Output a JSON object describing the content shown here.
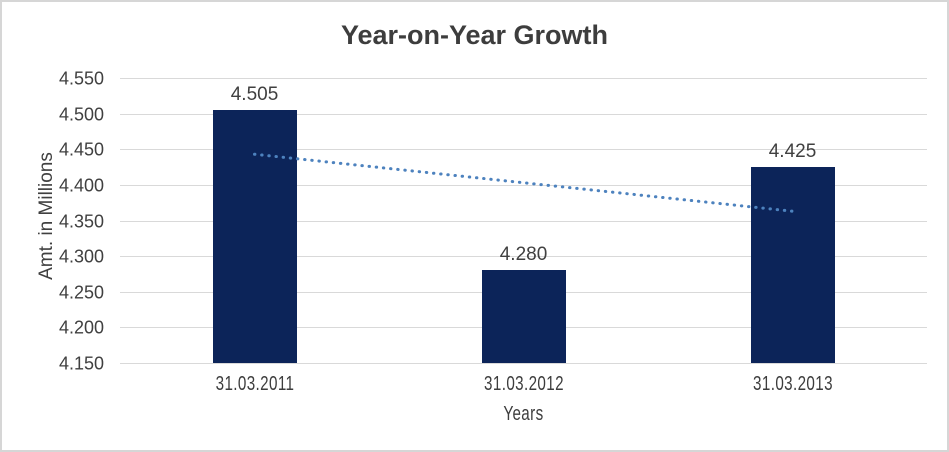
{
  "window": {
    "background_color": "#ffffff",
    "border_color": "#d6d6d6"
  },
  "chart_data": {
    "type": "bar",
    "title": "Year-on-Year Growth",
    "xlabel": "Years",
    "ylabel": "Amt. in Millions",
    "categories": [
      "31.03.2011",
      "31.03.2012",
      "31.03.2013"
    ],
    "values": [
      4.505,
      4.28,
      4.425
    ],
    "value_labels": [
      "4.505",
      "4.280",
      "4.425"
    ],
    "ylim": [
      4.15,
      4.55
    ],
    "ytick_labels": [
      "4.150",
      "4.200",
      "4.250",
      "4.300",
      "4.350",
      "4.400",
      "4.450",
      "4.500",
      "4.550"
    ],
    "grid": true,
    "legend_position": "none",
    "bar_color": "#0c2459",
    "gridline_color": "#d9d9d9",
    "text_color": "#404040",
    "trendline": {
      "type": "linear",
      "style": "dotted",
      "color": "#4d82be",
      "start_value": 4.443,
      "end_value": 4.363
    }
  }
}
